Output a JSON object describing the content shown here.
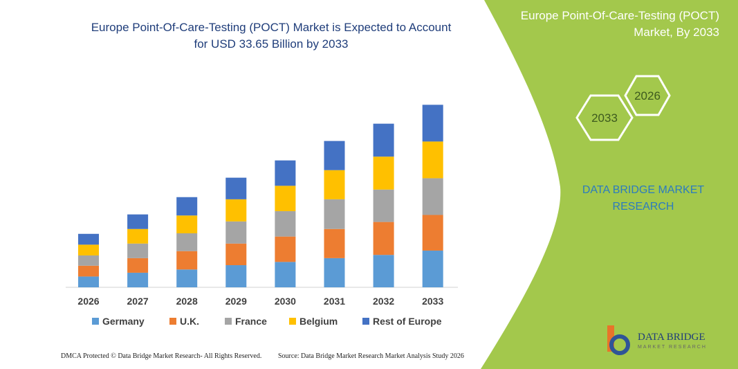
{
  "chart_data": {
    "type": "stacked_bar",
    "title": [
      "Europe Point-Of-Care-Testing (POCT) Market is Expected to Account",
      "for USD 33.65 Billion by 2033"
    ],
    "categories": [
      "2026",
      "2027",
      "2028",
      "2029",
      "2030",
      "2031",
      "2032",
      "2033"
    ],
    "series": [
      {
        "name": "Germany",
        "color": "#5b9bd5",
        "values": [
          2.0,
          2.7,
          3.3,
          4.1,
          4.7,
          5.4,
          6.0,
          6.8
        ]
      },
      {
        "name": "U.K.",
        "color": "#ed7d31",
        "values": [
          2.0,
          2.7,
          3.4,
          4.0,
          4.7,
          5.4,
          6.1,
          6.6
        ]
      },
      {
        "name": "France",
        "color": "#a5a5a5",
        "values": [
          1.9,
          2.7,
          3.3,
          4.1,
          4.7,
          5.5,
          6.0,
          6.8
        ]
      },
      {
        "name": "Belgium",
        "color": "#ffc000",
        "values": [
          2.0,
          2.7,
          3.3,
          4.1,
          4.7,
          5.4,
          6.1,
          6.8
        ]
      },
      {
        "name": "Rest of Europe",
        "color": "#4472c4",
        "values": [
          2.0,
          2.7,
          3.4,
          4.0,
          4.7,
          5.4,
          6.1,
          6.8
        ]
      }
    ]
  },
  "side_panel": {
    "title": [
      "Europe Point-Of-Care-Testing (POCT)",
      "Market, By 2033"
    ],
    "hex_labels": [
      "2026",
      "2033"
    ],
    "brand": [
      "DATA BRIDGE MARKET",
      "RESEARCH"
    ]
  },
  "logo": {
    "name": "DATA BRIDGE",
    "tagline": "MARKET RESEARCH"
  },
  "footer": {
    "left": "DMCA Protected © Data Bridge Market Research- All Rights Reserved.",
    "right": "Source: Data Bridge Market Research  Market Analysis Study 2026"
  }
}
